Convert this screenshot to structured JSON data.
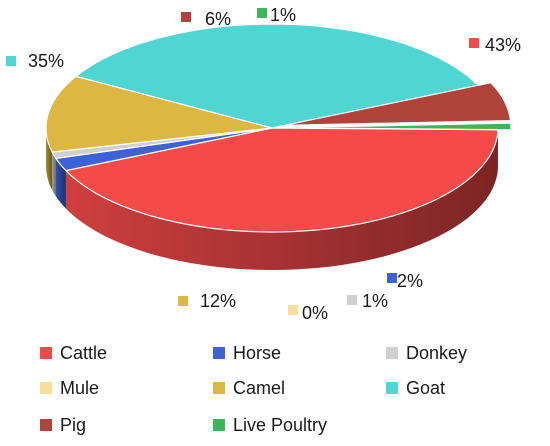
{
  "chart_data": {
    "type": "pie",
    "style": "3d",
    "title": "",
    "legend_position": "bottom",
    "categories": [
      "Cattle",
      "Horse",
      "Donkey",
      "Mule",
      "Camel",
      "Goat",
      "Pig",
      "Live Poultry"
    ],
    "values": [
      43,
      2,
      1,
      0,
      12,
      35,
      6,
      1
    ],
    "labels": [
      "43%",
      "2%",
      "1%",
      "0%",
      "12%",
      "35%",
      "6%",
      "1%"
    ],
    "colors": [
      "#f44a4a",
      "#3d62d8",
      "#cfcfcf",
      "#f6df9a",
      "#dcb842",
      "#4fd6d2",
      "#b0443a",
      "#3fb55a"
    ],
    "exploded": [
      "Pig",
      "Live Poultry"
    ]
  }
}
